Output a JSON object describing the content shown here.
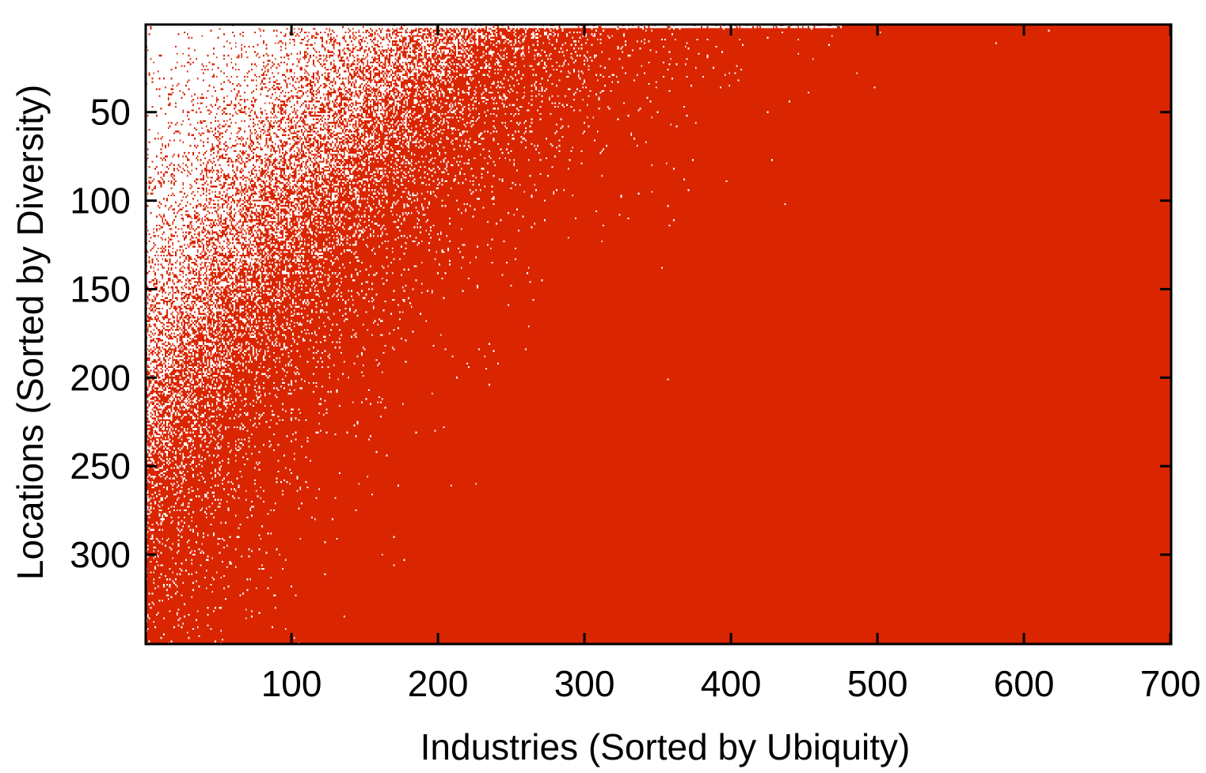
{
  "chart_data": {
    "type": "heatmap",
    "title": "",
    "xlabel": "Industries (Sorted by Ubiquity)",
    "ylabel": "Locations (Sorted by Diversity)",
    "xlim": [
      1,
      700
    ],
    "ylim": [
      1,
      350
    ],
    "y_inverted": true,
    "x_ticks": [
      100,
      200,
      300,
      400,
      500,
      600,
      700
    ],
    "y_ticks": [
      50,
      100,
      150,
      200,
      250,
      300
    ],
    "x_tick_labels": [
      "100",
      "200",
      "300",
      "400",
      "500",
      "600",
      "700"
    ],
    "y_tick_labels": [
      "50",
      "100",
      "150",
      "200",
      "250",
      "300"
    ],
    "n_industries": 700,
    "n_locations": 350,
    "fill_color": "#d92600",
    "empty_color": "#ffffff",
    "grid": false,
    "density_pattern": "Binary presence matrix; cells are densely filled toward high x (ubiquitous industries) and high y (diverse locations), sparse toward low x and low y, producing a triangular nested structure."
  }
}
